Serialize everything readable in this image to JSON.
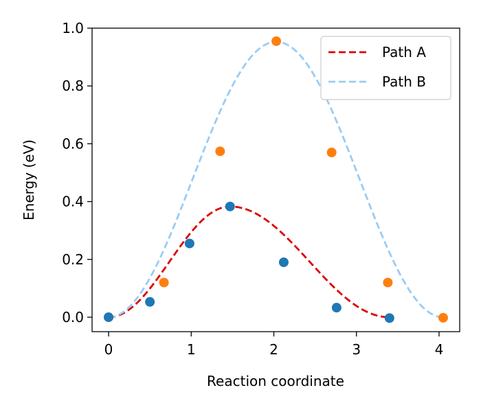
{
  "chart_data": {
    "type": "line",
    "title": "",
    "xlabel": "Reaction coordinate",
    "ylabel": "Energy (eV)",
    "xlim": [
      -0.2,
      4.25
    ],
    "ylim": [
      -0.05,
      1.0
    ],
    "xticks": [
      "0",
      "1",
      "2",
      "3",
      "4"
    ],
    "yticks": [
      "0.0",
      "0.2",
      "0.4",
      "0.6",
      "0.8",
      "1.0"
    ],
    "grid": false,
    "legend_position": "top-right",
    "series": [
      {
        "name": "Path A",
        "style": "dashed",
        "color": "#dd0000",
        "curve": {
          "peak_x": 1.47,
          "peak_y": 0.383,
          "end_x": 3.4
        },
        "points": {
          "color": "#1f77b4",
          "x": [
            0.0,
            0.5,
            0.98,
            1.47,
            2.12,
            2.76,
            3.4
          ],
          "y": [
            0.0,
            0.053,
            0.255,
            0.383,
            0.19,
            0.033,
            -0.003
          ]
        }
      },
      {
        "name": "Path B",
        "style": "dashed",
        "color": "#99ccf5",
        "curve": {
          "peak_x": 2.03,
          "peak_y": 0.953,
          "end_x": 4.05
        },
        "points": {
          "color": "#ff7f0e",
          "x": [
            0.0,
            0.67,
            1.35,
            2.03,
            2.7,
            3.38,
            4.05
          ],
          "y": [
            0.0,
            0.12,
            0.574,
            0.955,
            0.57,
            0.12,
            -0.002
          ]
        }
      }
    ]
  }
}
